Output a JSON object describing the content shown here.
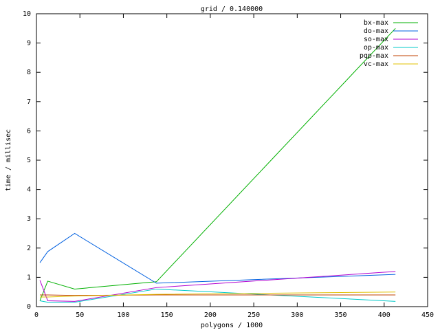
{
  "chart_data": {
    "type": "line",
    "title": "grid / 0.140000",
    "x_label": "polygons / 1000",
    "y_label": "time / millisec",
    "x": [
      4,
      13,
      44,
      138,
      413
    ],
    "series": [
      {
        "name": "bx-max",
        "color": "#00b000",
        "values": [
          0.2,
          0.87,
          0.6,
          0.85,
          9.5
        ]
      },
      {
        "name": "do-max",
        "color": "#0060e0",
        "values": [
          1.5,
          1.88,
          2.5,
          0.8,
          1.1
        ]
      },
      {
        "name": "so-max",
        "color": "#b000d0",
        "values": [
          0.9,
          0.2,
          0.18,
          0.65,
          1.2
        ]
      },
      {
        "name": "op-max",
        "color": "#00c8c8",
        "values": [
          0.2,
          0.15,
          0.15,
          0.6,
          0.18
        ]
      },
      {
        "name": "pqp-max",
        "color": "#c04000",
        "values": [
          0.4,
          0.4,
          0.38,
          0.4,
          0.4
        ]
      },
      {
        "name": "vc-max",
        "color": "#e0c000",
        "values": [
          0.33,
          0.33,
          0.36,
          0.42,
          0.5
        ]
      }
    ],
    "xlim": [
      0,
      450
    ],
    "xticks": [
      0,
      50,
      100,
      150,
      200,
      250,
      300,
      350,
      400,
      450
    ],
    "ylim": [
      0,
      10
    ],
    "yticks": [
      0,
      1,
      2,
      3,
      4,
      5,
      6,
      7,
      8,
      9,
      10
    ],
    "legend": "top-right"
  }
}
